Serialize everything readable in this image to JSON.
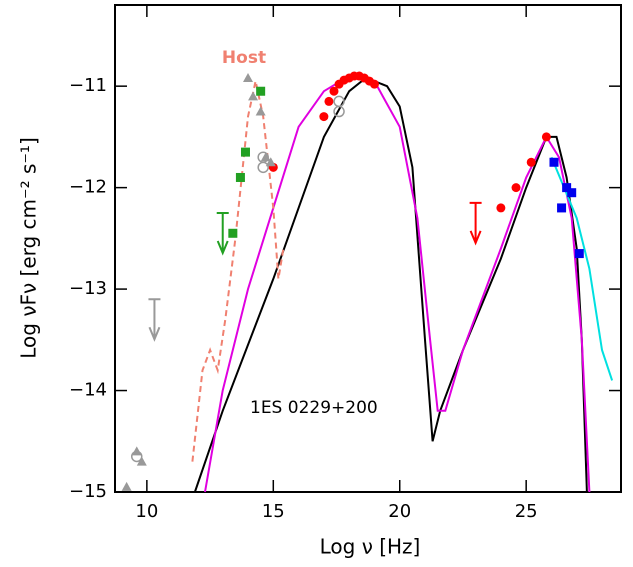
{
  "chart_data": {
    "type": "line",
    "xlabel": "Log ν [Hz]",
    "ylabel": "Log νFν [erg cm⁻² s⁻¹]",
    "annotations": [
      "Host",
      "1ES 0229+200"
    ],
    "xlim": [
      8.74,
      28.75
    ],
    "ylim": [
      -15,
      -10.2
    ],
    "xticks": [
      10,
      15,
      20,
      25
    ],
    "yticks": [
      {
        "value": -11,
        "label": "−11"
      },
      {
        "value": -12,
        "label": "−12"
      },
      {
        "value": -13,
        "label": "−13"
      },
      {
        "value": -14,
        "label": "−14"
      },
      {
        "value": -15,
        "label": "−15"
      }
    ],
    "series": [
      {
        "color": "#000000",
        "style": "solid",
        "x": [
          11.9,
          13,
          15,
          16,
          17,
          18,
          18.5,
          19,
          19.5,
          20,
          20.5,
          21,
          21.3,
          21.6,
          22.5,
          24,
          25,
          25.8,
          26.2,
          26.6,
          27,
          27.2,
          27.4
        ],
        "values": [
          -15,
          -14.2,
          -12.9,
          -12.2,
          -11.5,
          -11.05,
          -10.95,
          -10.95,
          -11.0,
          -11.2,
          -11.8,
          -13.5,
          -14.5,
          -14.2,
          -13.6,
          -12.7,
          -12.0,
          -11.5,
          -11.5,
          -11.9,
          -12.6,
          -13.5,
          -15
        ]
      },
      {
        "color": "#e000e0",
        "style": "solid",
        "x": [
          12.3,
          13,
          14,
          15,
          16,
          17,
          18,
          18.5,
          19,
          20,
          20.7,
          21.2,
          21.5,
          21.8,
          22.5,
          24,
          25,
          25.8,
          26.3,
          26.8,
          27.2,
          27.5
        ],
        "values": [
          -15,
          -14,
          -13,
          -12.2,
          -11.4,
          -11.05,
          -10.9,
          -10.9,
          -10.95,
          -11.4,
          -12.3,
          -13.5,
          -14.2,
          -14.2,
          -13.6,
          -12.6,
          -11.9,
          -11.5,
          -11.7,
          -12.3,
          -13.5,
          -15
        ]
      },
      {
        "color": "#00e0e0",
        "style": "solid",
        "x": [
          26,
          26.5,
          27,
          27.5,
          28,
          28.4
        ],
        "values": [
          -11.7,
          -12.0,
          -12.3,
          -12.8,
          -13.6,
          -13.9
        ]
      },
      {
        "color": "#f08070",
        "style": "dashed",
        "x": [
          11.8,
          12.2,
          12.5,
          12.8,
          13.1,
          13.5,
          14,
          14.3,
          14.6,
          15,
          15.2,
          15.4
        ],
        "values": [
          -14.7,
          -13.8,
          -13.6,
          -13.8,
          -13.3,
          -12.5,
          -11.3,
          -10.95,
          -11.3,
          -12.2,
          -12.9,
          -12.6
        ]
      }
    ],
    "points": [
      {
        "color": "#ff0000",
        "marker": "circle",
        "x": [
          17.0,
          17.2,
          17.4,
          17.6,
          17.8,
          18.0,
          18.2,
          18.4,
          18.6,
          18.8,
          19.0,
          15.0,
          24.0,
          24.6,
          25.2,
          25.8
        ],
        "values": [
          -11.3,
          -11.15,
          -11.05,
          -10.98,
          -10.94,
          -10.92,
          -10.9,
          -10.9,
          -10.92,
          -10.95,
          -10.98,
          -11.8,
          -12.2,
          -12.0,
          -11.75,
          -11.5
        ]
      },
      {
        "color": "#999999",
        "marker": "triangle",
        "x": [
          9.2,
          9.6,
          9.8,
          14.0,
          14.2,
          14.5,
          14.7,
          14.9
        ],
        "values": [
          -14.95,
          -14.6,
          -14.7,
          -10.92,
          -11.1,
          -11.25,
          -11.7,
          -11.75
        ]
      },
      {
        "color": "#999999",
        "marker": "ring",
        "x": [
          9.6,
          14.6,
          14.6,
          17.6,
          17.6
        ],
        "values": [
          -14.65,
          -11.7,
          -11.8,
          -11.15,
          -11.25
        ]
      },
      {
        "color": "#22a022",
        "marker": "square",
        "x": [
          13.4,
          13.7,
          13.9,
          14.5
        ],
        "values": [
          -12.45,
          -11.9,
          -11.65,
          -11.05
        ]
      },
      {
        "color": "#0000ee",
        "marker": "square",
        "x": [
          26.1,
          26.4,
          26.6,
          26.8,
          27.1
        ],
        "values": [
          -11.75,
          -12.2,
          -12.0,
          -12.05,
          -12.65
        ]
      },
      {
        "color": "#999999",
        "marker": "arrow",
        "x": [
          10.3
        ],
        "values": [
          -13.1
        ]
      },
      {
        "color": "#22a022",
        "marker": "arrow",
        "x": [
          13.0
        ],
        "values": [
          -12.25
        ]
      },
      {
        "color": "#ff0000",
        "marker": "arrow",
        "x": [
          23.0
        ],
        "values": [
          -12.15
        ]
      }
    ]
  }
}
